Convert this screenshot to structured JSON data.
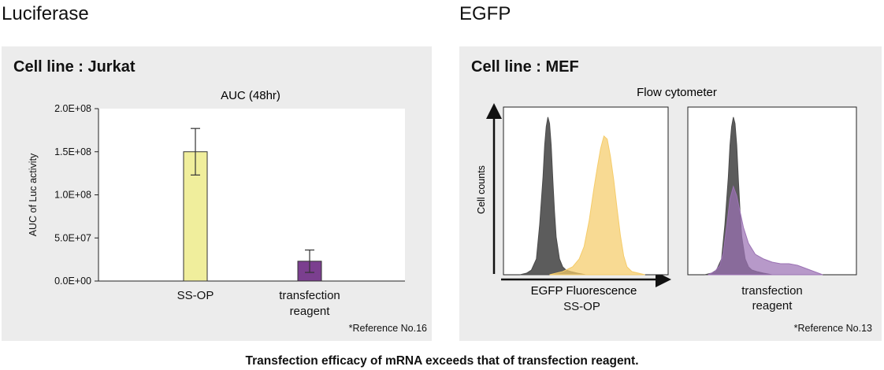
{
  "left": {
    "section_title": "Luciferase",
    "cell_line": "Cell line : Jurkat",
    "reference": "*Reference No.16"
  },
  "right": {
    "section_title": "EGFP",
    "cell_line": "Cell line : MEF",
    "reference": "*Reference No.13"
  },
  "caption": "Transfection efficacy of mRNA exceeds that of transfection reagent.",
  "colors": {
    "panel_bg": "#ececec",
    "ssop_bar": "#f0ee9c",
    "reagent_bar": "#7b3f8f",
    "control_hist": "#4a4a4a",
    "ssop_hist": "#f5cc6a",
    "reagent_hist": "#9b72b4"
  },
  "chart_data": [
    {
      "type": "bar",
      "title": "AUC (48hr)",
      "xlabel": "",
      "ylabel": "AUC of Luc activity",
      "categories": [
        "SS-OP",
        "transfection reagent"
      ],
      "category_lines": [
        [
          "SS-OP"
        ],
        [
          "transfection",
          "reagent"
        ]
      ],
      "values": [
        150000000,
        23000000
      ],
      "error": [
        27000000,
        13000000
      ],
      "ylim": [
        0,
        200000000
      ],
      "yticks": [
        0,
        50000000,
        100000000,
        150000000,
        200000000
      ],
      "ytick_labels": [
        "0.0E+00",
        "5.0E+07",
        "1.0E+08",
        "1.5E+08",
        "2.0E+08"
      ],
      "grid": false
    },
    {
      "type": "area",
      "title": "Flow cytometer",
      "xlabel": "EGFP Fluorescence",
      "ylabel": "Cell counts",
      "panels": [
        {
          "label": "SS-OP",
          "series": [
            {
              "color": "#4a4a4a",
              "x": [
                0.1,
                0.14,
                0.17,
                0.2,
                0.22,
                0.24,
                0.25,
                0.26,
                0.27,
                0.28,
                0.29,
                0.3,
                0.31,
                0.32,
                0.34,
                0.36,
                0.38,
                0.41,
                0.45,
                0.5
              ],
              "y": [
                0,
                0.01,
                0.03,
                0.1,
                0.32,
                0.62,
                0.82,
                0.94,
                1.0,
                0.96,
                0.82,
                0.6,
                0.4,
                0.24,
                0.1,
                0.05,
                0.03,
                0.02,
                0.01,
                0
              ]
            },
            {
              "color": "#f5cc6a",
              "x": [
                0.28,
                0.36,
                0.42,
                0.46,
                0.49,
                0.52,
                0.55,
                0.57,
                0.59,
                0.61,
                0.63,
                0.65,
                0.67,
                0.69,
                0.71,
                0.73,
                0.75,
                0.78,
                0.82,
                0.86
              ],
              "y": [
                0,
                0.02,
                0.05,
                0.1,
                0.18,
                0.34,
                0.55,
                0.68,
                0.8,
                0.88,
                0.86,
                0.75,
                0.6,
                0.42,
                0.25,
                0.12,
                0.05,
                0.02,
                0.01,
                0
              ]
            }
          ]
        },
        {
          "label": "transfection reagent",
          "label_lines": [
            "transfection",
            "reagent"
          ],
          "series": [
            {
              "color": "#4a4a4a",
              "x": [
                0.1,
                0.14,
                0.17,
                0.2,
                0.22,
                0.24,
                0.25,
                0.26,
                0.27,
                0.28,
                0.29,
                0.3,
                0.31,
                0.32,
                0.34,
                0.36,
                0.38,
                0.41,
                0.45,
                0.5
              ],
              "y": [
                0,
                0.01,
                0.03,
                0.1,
                0.32,
                0.62,
                0.82,
                0.94,
                1.0,
                0.96,
                0.82,
                0.6,
                0.4,
                0.24,
                0.1,
                0.05,
                0.03,
                0.02,
                0.01,
                0
              ]
            },
            {
              "color": "#9b72b4",
              "x": [
                0.12,
                0.16,
                0.19,
                0.21,
                0.23,
                0.25,
                0.27,
                0.29,
                0.31,
                0.33,
                0.36,
                0.4,
                0.45,
                0.5,
                0.55,
                0.6,
                0.65,
                0.7,
                0.75,
                0.8
              ],
              "y": [
                0,
                0.02,
                0.06,
                0.14,
                0.3,
                0.48,
                0.56,
                0.5,
                0.4,
                0.3,
                0.2,
                0.13,
                0.1,
                0.08,
                0.07,
                0.07,
                0.06,
                0.04,
                0.02,
                0
              ]
            }
          ]
        }
      ]
    }
  ]
}
